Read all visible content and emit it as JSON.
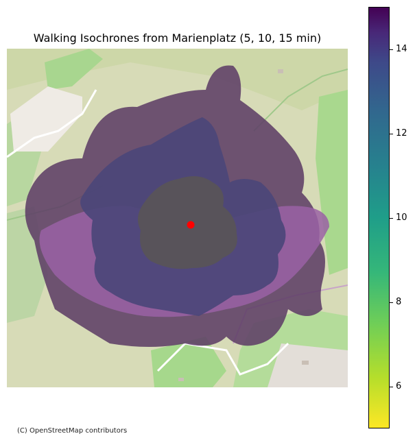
{
  "title": "Walking Isochrones from Marienplatz (5, 10, 15 min)",
  "attribution": "(C) OpenStreetMap contributors",
  "colorbar": {
    "min": 5,
    "max": 15,
    "colormap": "viridis_r",
    "ticks": [
      "6",
      "8",
      "10",
      "12",
      "14"
    ]
  },
  "isochrones": [
    {
      "minutes": 15,
      "color": "#5e3f66"
    },
    {
      "minutes": 10,
      "color": "#4a4679"
    },
    {
      "minutes": 5,
      "color": "#585458"
    }
  ],
  "origin": {
    "label": "Marienplatz",
    "color": "#ff0000"
  },
  "colors": {
    "map_background": "#d8dcb8",
    "forest": "#a9cf92",
    "meadow": "#b9e2a2",
    "road": "#ffffff",
    "building": "#d6cfc6",
    "accent_purple": "#9a62a4"
  }
}
